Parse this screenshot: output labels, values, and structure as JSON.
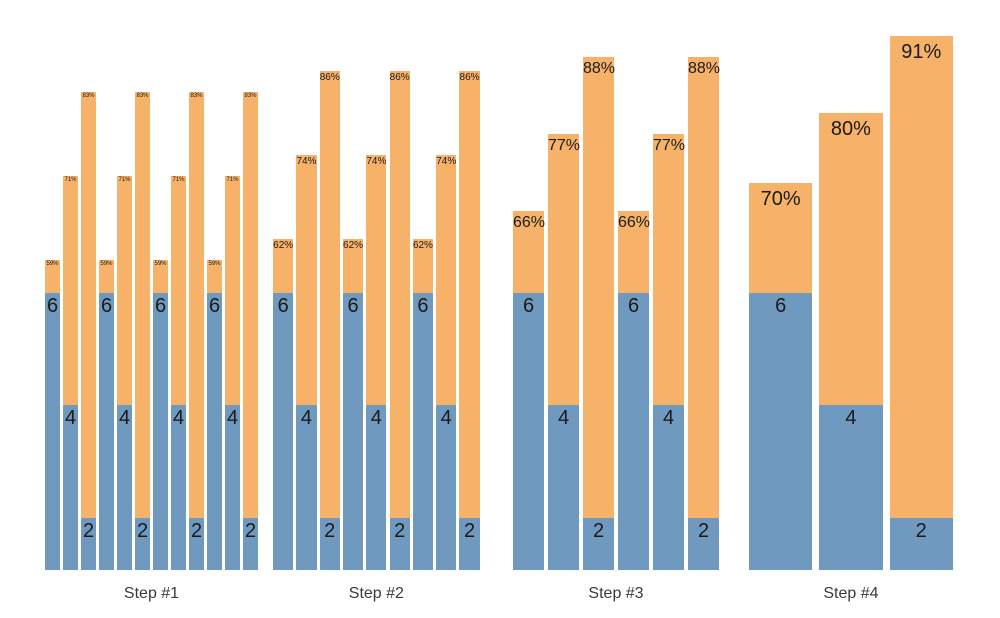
{
  "chart_data": {
    "type": "bar",
    "title": "",
    "xlabel": "",
    "ylabel": "",
    "grid": false,
    "legend": false,
    "background": "#ffffff",
    "bar_structure": "stacked vertical bars: blue base segment labeled with a count, orange upper segment whose top carries a percentage label; bar count per group decreases 12/9/6/3 while bar width increases",
    "colors": {
      "blue_segment": "#7099c0",
      "orange_segment": "#f7b26a",
      "bar_value_text": "#1a1a1a",
      "axis_text": "#3a3a3a"
    },
    "categories": [
      "Step #1",
      "Step #2",
      "Step #3",
      "Step #4"
    ],
    "steps": [
      {
        "label": "Step #1",
        "bars": [
          {
            "count": 6,
            "pct": 59,
            "pct_label": "59%"
          },
          {
            "count": 4,
            "pct": 71,
            "pct_label": "71%"
          },
          {
            "count": 2,
            "pct": 83,
            "pct_label": "83%"
          },
          {
            "count": 6,
            "pct": 59,
            "pct_label": "59%"
          },
          {
            "count": 4,
            "pct": 71,
            "pct_label": "71%"
          },
          {
            "count": 2,
            "pct": 83,
            "pct_label": "83%"
          },
          {
            "count": 6,
            "pct": 59,
            "pct_label": "59%"
          },
          {
            "count": 4,
            "pct": 71,
            "pct_label": "71%"
          },
          {
            "count": 2,
            "pct": 83,
            "pct_label": "83%"
          },
          {
            "count": 6,
            "pct": 59,
            "pct_label": "59%"
          },
          {
            "count": 4,
            "pct": 71,
            "pct_label": "71%"
          },
          {
            "count": 2,
            "pct": 83,
            "pct_label": "83%"
          }
        ]
      },
      {
        "label": "Step #2",
        "bars": [
          {
            "count": 6,
            "pct": 62,
            "pct_label": "62%"
          },
          {
            "count": 4,
            "pct": 74,
            "pct_label": "74%"
          },
          {
            "count": 2,
            "pct": 86,
            "pct_label": "86%"
          },
          {
            "count": 6,
            "pct": 62,
            "pct_label": "62%"
          },
          {
            "count": 4,
            "pct": 74,
            "pct_label": "74%"
          },
          {
            "count": 2,
            "pct": 86,
            "pct_label": "86%"
          },
          {
            "count": 6,
            "pct": 62,
            "pct_label": "62%"
          },
          {
            "count": 4,
            "pct": 74,
            "pct_label": "74%"
          },
          {
            "count": 2,
            "pct": 86,
            "pct_label": "86%"
          }
        ]
      },
      {
        "label": "Step #3",
        "bars": [
          {
            "count": 6,
            "pct": 66,
            "pct_label": "66%"
          },
          {
            "count": 4,
            "pct": 77,
            "pct_label": "77%"
          },
          {
            "count": 2,
            "pct": 88,
            "pct_label": "88%"
          },
          {
            "count": 6,
            "pct": 66,
            "pct_label": "66%"
          },
          {
            "count": 4,
            "pct": 77,
            "pct_label": "77%"
          },
          {
            "count": 2,
            "pct": 88,
            "pct_label": "88%"
          }
        ]
      },
      {
        "label": "Step #4",
        "bars": [
          {
            "count": 6,
            "pct": 70,
            "pct_label": "70%"
          },
          {
            "count": 4,
            "pct": 80,
            "pct_label": "80%"
          },
          {
            "count": 2,
            "pct": 91,
            "pct_label": "91%"
          }
        ]
      }
    ]
  }
}
